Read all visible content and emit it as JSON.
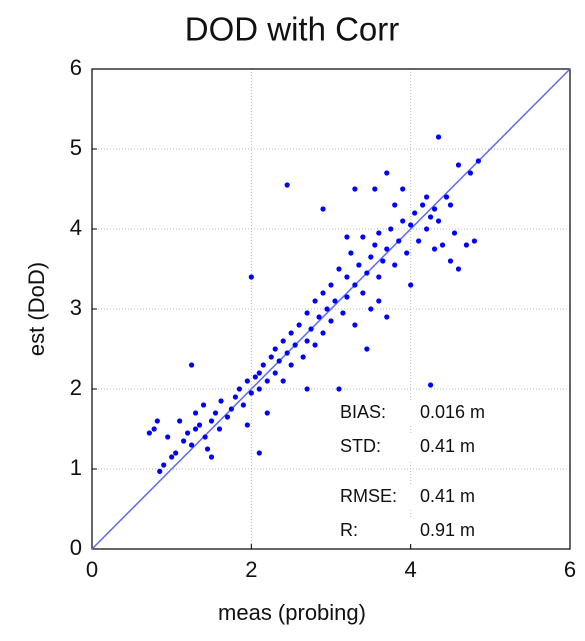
{
  "chart_data": {
    "type": "scatter",
    "title": "DOD with Corr",
    "x_label": "meas (probing)",
    "y_label": "est (DoD)",
    "xlim": [
      0,
      6
    ],
    "ylim": [
      0,
      6
    ],
    "xticks": [
      0,
      2,
      4,
      6
    ],
    "yticks": [
      0,
      1,
      2,
      3,
      4,
      5,
      6
    ],
    "grid": true,
    "diagonal": true,
    "color": "#0000ff",
    "line_color": "#5a6cf0",
    "annotations": [
      [
        "BIAS:",
        "0.016 m"
      ],
      [
        "STD:",
        "0.41 m"
      ],
      [
        "RMSE:",
        "0.41 m"
      ],
      [
        "R:",
        "0.91 m"
      ]
    ],
    "x": [
      0.72,
      0.78,
      0.82,
      0.85,
      0.9,
      0.95,
      1.0,
      1.05,
      1.1,
      1.15,
      1.2,
      1.25,
      1.3,
      1.35,
      1.4,
      1.42,
      1.45,
      1.5,
      1.5,
      1.55,
      1.6,
      1.62,
      1.7,
      1.75,
      1.8,
      1.85,
      1.9,
      1.95,
      2.0,
      2.05,
      2.1,
      2.1,
      2.15,
      2.2,
      2.25,
      2.3,
      2.3,
      2.35,
      2.4,
      2.4,
      2.45,
      2.5,
      2.5,
      2.55,
      2.6,
      2.65,
      2.7,
      2.7,
      2.75,
      2.8,
      2.8,
      2.85,
      2.9,
      2.9,
      2.95,
      3.0,
      3.0,
      3.05,
      3.1,
      3.1,
      3.15,
      3.2,
      3.2,
      3.25,
      3.3,
      3.3,
      3.35,
      3.4,
      3.4,
      3.45,
      3.5,
      3.5,
      3.55,
      3.6,
      3.6,
      3.65,
      3.7,
      3.7,
      3.75,
      3.8,
      3.8,
      3.85,
      3.9,
      3.95,
      4.0,
      4.0,
      4.05,
      4.1,
      4.15,
      4.2,
      4.2,
      4.25,
      4.25,
      4.3,
      4.3,
      4.35,
      4.35,
      4.4,
      4.45,
      4.5,
      4.5,
      4.55,
      4.6,
      4.6,
      4.7,
      4.75,
      4.8,
      4.85,
      2.45,
      2.0,
      2.1,
      1.25,
      2.7,
      3.3,
      3.55,
      3.7,
      3.9,
      2.9,
      3.2,
      2.2,
      1.95,
      1.3,
      3.6,
      3.45
    ],
    "values": [
      1.45,
      1.5,
      1.6,
      0.97,
      1.05,
      1.4,
      1.15,
      1.2,
      1.6,
      1.35,
      1.45,
      1.3,
      1.5,
      1.55,
      1.8,
      1.4,
      1.25,
      1.15,
      1.6,
      1.7,
      1.5,
      1.85,
      1.65,
      1.75,
      1.9,
      2.0,
      1.8,
      2.1,
      1.95,
      2.15,
      2.2,
      2.0,
      2.3,
      2.1,
      2.4,
      2.2,
      2.5,
      2.35,
      2.6,
      2.1,
      2.45,
      2.3,
      2.7,
      2.55,
      2.8,
      2.4,
      2.6,
      2.95,
      2.75,
      3.1,
      2.55,
      2.9,
      3.2,
      2.7,
      3.0,
      3.3,
      2.85,
      3.1,
      3.5,
      2.0,
      2.95,
      3.4,
      3.15,
      3.7,
      3.3,
      2.8,
      3.55,
      3.2,
      3.9,
      3.45,
      3.65,
      3.0,
      3.8,
      3.4,
      3.95,
      3.6,
      2.9,
      3.75,
      4.0,
      3.55,
      4.3,
      3.85,
      4.1,
      3.7,
      4.05,
      3.3,
      4.2,
      3.85,
      4.3,
      4.0,
      4.4,
      4.15,
      2.05,
      3.75,
      4.25,
      5.15,
      4.1,
      3.8,
      4.4,
      3.6,
      4.3,
      3.95,
      4.8,
      3.5,
      3.8,
      4.7,
      3.85,
      4.85,
      4.55,
      3.4,
      1.2,
      2.3,
      2.0,
      4.5,
      4.5,
      4.7,
      4.5,
      4.25,
      3.9,
      1.7,
      1.55,
      1.7,
      3.1,
      2.5
    ]
  }
}
